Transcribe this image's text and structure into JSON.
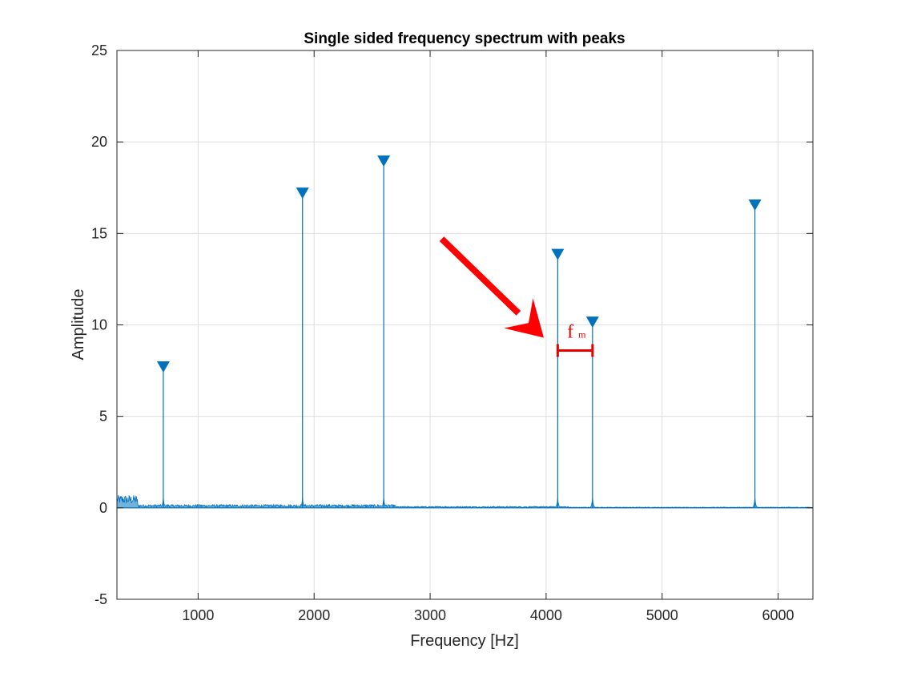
{
  "chart_data": {
    "type": "line",
    "title": "Single sided frequency spectrum with peaks",
    "xlabel": "Frequency [Hz]",
    "ylabel": "Amplitude",
    "xlim": [
      300,
      6300
    ],
    "ylim": [
      -5,
      25
    ],
    "x_ticks": [
      1000,
      2000,
      3000,
      4000,
      5000,
      6000
    ],
    "y_ticks": [
      -5,
      0,
      5,
      10,
      15,
      20,
      25
    ],
    "grid": true,
    "series": [
      {
        "peaks": [
          {
            "x": 700,
            "y": 7.7
          },
          {
            "x": 1900,
            "y": 17.2
          },
          {
            "x": 2600,
            "y": 18.95
          },
          {
            "x": 4100,
            "y": 13.85
          },
          {
            "x": 4400,
            "y": 10.15
          },
          {
            "x": 5800,
            "y": 16.55
          }
        ],
        "color": "#0072bd"
      }
    ],
    "annotations": [
      {
        "type": "arrow",
        "from": [
          3100,
          14.7
        ],
        "to": [
          3980,
          9.3
        ],
        "color": "#ff0000"
      },
      {
        "type": "interval",
        "x_start": 4100,
        "x_end": 4400,
        "y": 8.6,
        "label": "f",
        "label_sub": "m",
        "color": "#e60000"
      }
    ]
  }
}
